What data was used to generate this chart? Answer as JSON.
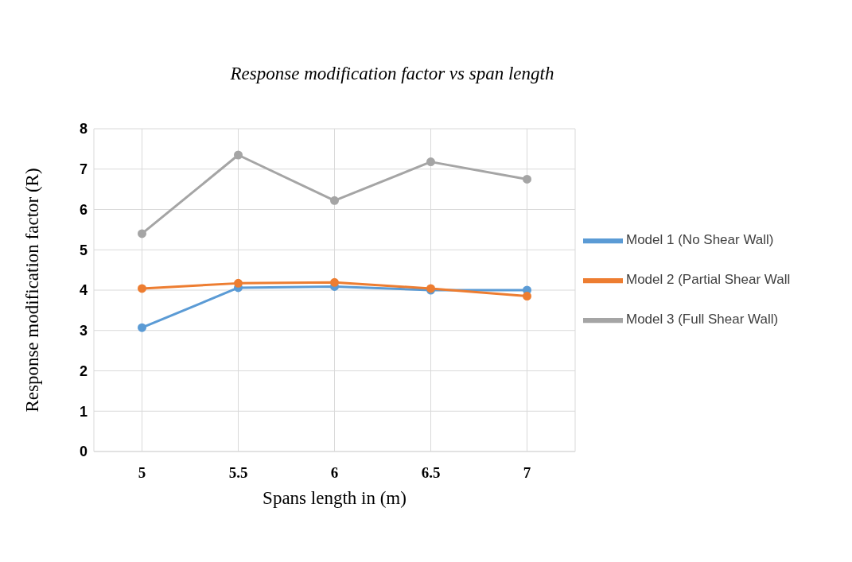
{
  "chart_data": {
    "type": "line",
    "title": "Response modification factor vs span length",
    "xlabel": "Spans length in (m)",
    "ylabel": "Response modification factor (R)",
    "x": [
      5,
      5.5,
      6,
      6.5,
      7
    ],
    "xlim": [
      4.75,
      7.25
    ],
    "xticks": [
      5,
      5.5,
      6,
      6.5,
      7
    ],
    "ylim": [
      0,
      8
    ],
    "yticks": [
      0,
      1,
      2,
      3,
      4,
      5,
      6,
      7,
      8
    ],
    "series": [
      {
        "name": "Model 1 (No Shear Wall)",
        "color": "#5b9bd5",
        "values": [
          3.07,
          4.06,
          4.09,
          4.0,
          4.0
        ]
      },
      {
        "name": "Model 2 (Partial Shear Wall",
        "color": "#ed7d31",
        "values": [
          4.04,
          4.17,
          4.19,
          4.04,
          3.85
        ]
      },
      {
        "name": "Model 3 (Full Shear Wall)",
        "color": "#a5a5a5",
        "values": [
          5.4,
          7.35,
          6.22,
          7.18,
          6.75
        ]
      }
    ],
    "grid": true,
    "legend": "right",
    "marker": "circle",
    "line_style": "solid"
  }
}
